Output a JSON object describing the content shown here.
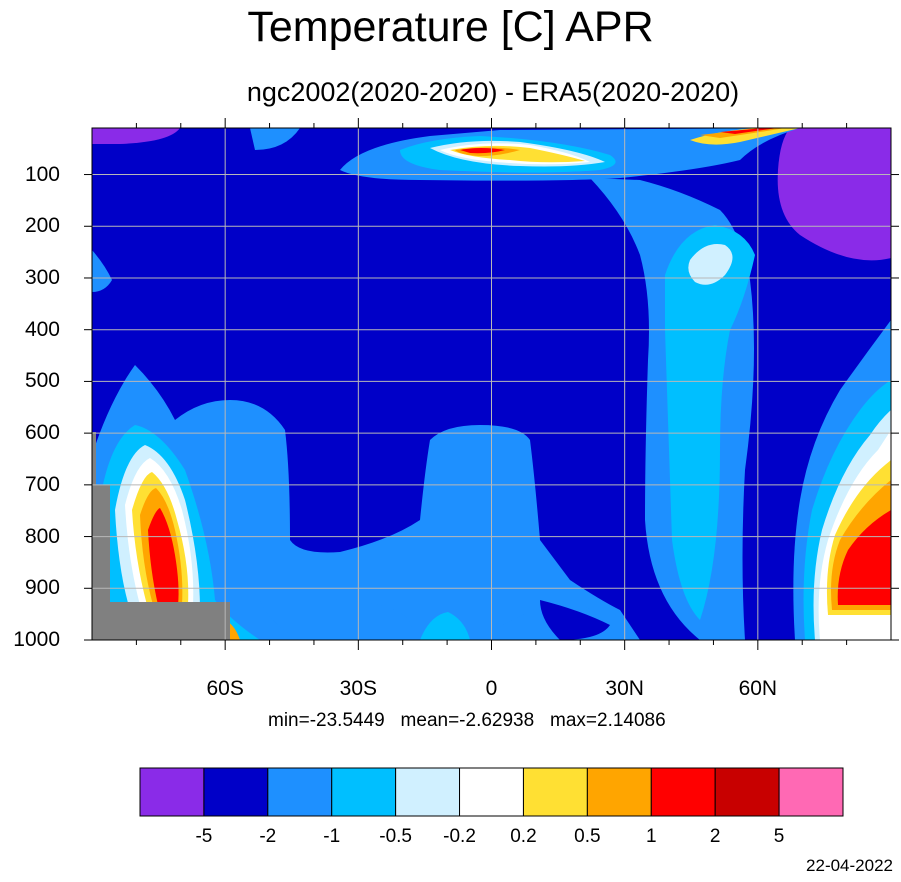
{
  "chart_data": {
    "type": "heatmap",
    "title": "Temperature [C] APR",
    "subtitle": "ngc2002(2020-2020) - ERA5(2020-2020)",
    "stats_text": "min=-23.5449   mean=-2.62938   max=2.14086",
    "date": "22-04-2022",
    "x_ticks": [
      {
        "value": -60,
        "label": "60S"
      },
      {
        "value": -30,
        "label": "30S"
      },
      {
        "value": 0,
        "label": "0"
      },
      {
        "value": 30,
        "label": "30N"
      },
      {
        "value": 60,
        "label": "60N"
      }
    ],
    "xlim": [
      -90,
      90
    ],
    "y_ticks": [
      {
        "value": 100,
        "label": "100"
      },
      {
        "value": 200,
        "label": "200"
      },
      {
        "value": 300,
        "label": "300"
      },
      {
        "value": 400,
        "label": "400"
      },
      {
        "value": 500,
        "label": "500"
      },
      {
        "value": 600,
        "label": "600"
      },
      {
        "value": 700,
        "label": "700"
      },
      {
        "value": 800,
        "label": "800"
      },
      {
        "value": 900,
        "label": "900"
      },
      {
        "value": 1000,
        "label": "1000"
      }
    ],
    "ylim": [
      10,
      1000
    ],
    "y_inverted": true,
    "grid": true,
    "colorbar": {
      "levels": [
        "-5",
        "-2",
        "-1",
        "-0.5",
        "-0.2",
        "0.2",
        "0.5",
        "1",
        "2",
        "5"
      ],
      "colors": [
        "#8a2be8",
        "#0000c8",
        "#1e90ff",
        "#00bfff",
        "#d0f0ff",
        "#ffffff",
        "#ffe033",
        "#ffa500",
        "#ff0000",
        "#c80000",
        "#ff69b4"
      ],
      "placement": "bottom"
    },
    "background_color": "#0000c8",
    "missing_color": "#808080"
  }
}
